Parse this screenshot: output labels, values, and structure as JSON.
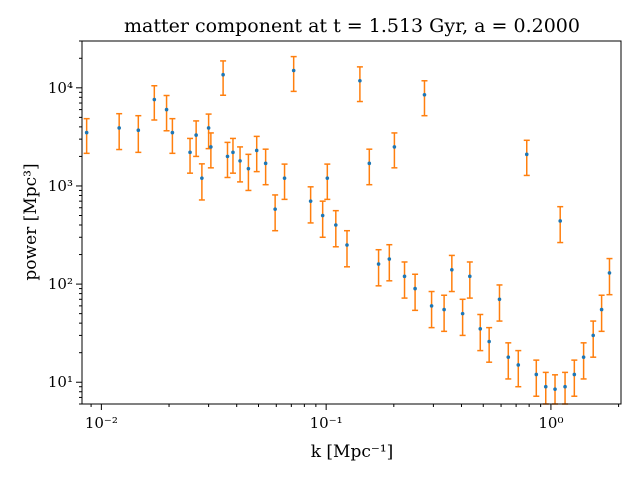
{
  "chart_data": {
    "type": "scatter",
    "title": "matter component at t = 1.513 Gyr, a = 0.2000",
    "xlabel": "k [Mpc⁻¹]",
    "ylabel": "power [Mpc³]",
    "x_scale": "log",
    "y_scale": "log",
    "xlim": [
      0.0082,
      2.05
    ],
    "ylim": [
      6.0,
      30000
    ],
    "x_ticks": [
      {
        "value": 0.01,
        "label": "10⁻²"
      },
      {
        "value": 0.1,
        "label": "10⁻¹"
      },
      {
        "value": 1,
        "label": "10⁰"
      }
    ],
    "y_ticks": [
      {
        "value": 10,
        "label": "10¹"
      },
      {
        "value": 100,
        "label": "10²"
      },
      {
        "value": 1000,
        "label": "10³"
      },
      {
        "value": 10000,
        "label": "10⁴"
      }
    ],
    "grid": false,
    "legend": "none",
    "colors": {
      "points": "#1f77b4",
      "errorbars": "#ff7f0e"
    },
    "series": [
      {
        "k": [
          0.0086,
          0.012,
          0.0146,
          0.0172,
          0.0195,
          0.0207,
          0.0248,
          0.0264,
          0.028,
          0.03,
          0.0307,
          0.0348,
          0.0364,
          0.0385,
          0.0414,
          0.0451,
          0.0491,
          0.0538,
          0.0593,
          0.0653,
          0.0717,
          0.0853,
          0.0965,
          0.1012,
          0.1104,
          0.1238,
          0.1413,
          0.1556,
          0.1711,
          0.191,
          0.2012,
          0.2232,
          0.2487,
          0.2738,
          0.2945,
          0.3348,
          0.3624,
          0.4047,
          0.4357,
          0.4849,
          0.5311,
          0.5904,
          0.6461,
          0.7158,
          0.7806,
          0.8608,
          0.9484,
          1.0429,
          1.0997,
          1.1558,
          1.2709,
          1.3977,
          1.5421,
          1.6807,
          1.8217
        ],
        "power": [
          3500,
          3900,
          3700,
          7600,
          6000,
          3500,
          2200,
          3300,
          1200,
          3900,
          2500,
          13600,
          2000,
          2200,
          1800,
          1500,
          2300,
          1700,
          580,
          1200,
          15000,
          700,
          500,
          1200,
          400,
          250,
          11800,
          1700,
          160,
          180,
          2500,
          120,
          90,
          8500,
          60,
          55,
          140,
          50,
          120,
          35,
          26,
          70,
          18,
          15,
          2100,
          12,
          9,
          8.5,
          440,
          9,
          12,
          18,
          30,
          55,
          130
        ],
        "err_low": [
          1350,
          1550,
          1500,
          2900,
          2350,
          1350,
          850,
          1300,
          480,
          1500,
          970,
          5200,
          780,
          850,
          700,
          600,
          900,
          670,
          230,
          470,
          5800,
          280,
          200,
          470,
          160,
          100,
          4550,
          670,
          64,
          72,
          970,
          48,
          36,
          3300,
          24,
          22,
          56,
          20,
          48,
          14,
          10,
          28,
          7.2,
          6.0,
          820,
          4.8,
          3.6,
          3.4,
          175,
          3.6,
          4.8,
          7.2,
          12,
          22,
          52
        ],
        "err_high": [
          1350,
          1550,
          1500,
          2900,
          2350,
          1350,
          850,
          1300,
          480,
          1500,
          970,
          5200,
          780,
          850,
          700,
          600,
          900,
          670,
          230,
          470,
          5800,
          280,
          200,
          470,
          160,
          100,
          4550,
          670,
          64,
          72,
          970,
          48,
          36,
          3300,
          24,
          22,
          56,
          20,
          48,
          14,
          10,
          28,
          7.2,
          6.0,
          820,
          4.8,
          3.6,
          3.4,
          175,
          3.6,
          4.8,
          7.2,
          12,
          22,
          52
        ]
      }
    ]
  }
}
